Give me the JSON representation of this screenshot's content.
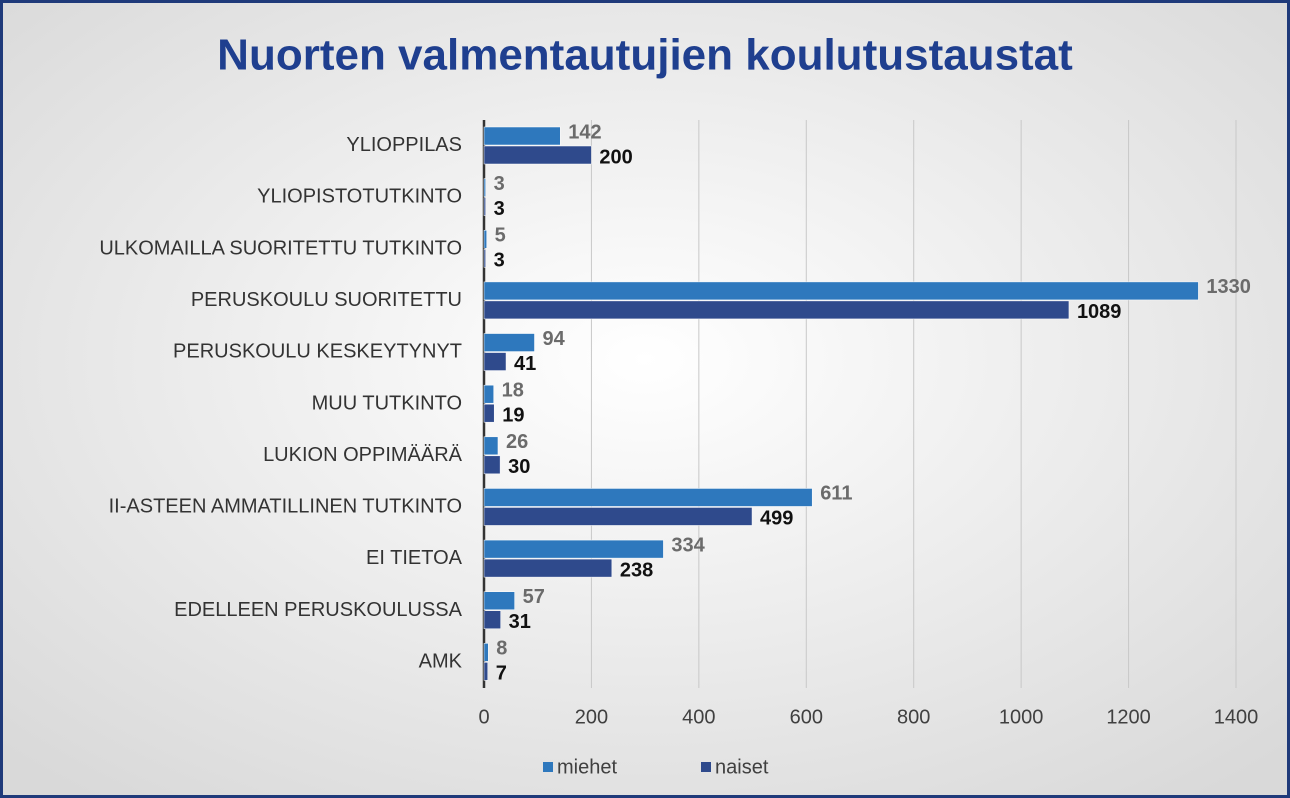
{
  "chart_data": {
    "type": "bar",
    "orientation": "horizontal",
    "title": "Nuorten valmentautujien koulutustaustat",
    "categories": [
      "YLIOPPILAS",
      "YLIOPISTOTUTKINTO",
      "ULKOMAILLA SUORITETTU TUTKINTO",
      "PERUSKOULU SUORITETTU",
      "PERUSKOULU KESKEYTYNYT",
      "MUU TUTKINTO",
      "LUKION OPPIMÄÄRÄ",
      "II-ASTEEN AMMATILLINEN TUTKINTO",
      "EI TIETOA",
      "EDELLEEN PERUSKOULUSSA",
      "AMK"
    ],
    "series": [
      {
        "name": "miehet",
        "color": "#2e78bd",
        "values": [
          142,
          3,
          5,
          1330,
          94,
          18,
          26,
          611,
          334,
          57,
          8
        ]
      },
      {
        "name": "naiset",
        "color": "#2f4a8c",
        "values": [
          200,
          3,
          3,
          1089,
          41,
          19,
          30,
          499,
          238,
          31,
          7
        ]
      }
    ],
    "xlim": [
      0,
      1400
    ],
    "xticks": [
      0,
      200,
      400,
      600,
      800,
      1000,
      1200,
      1400
    ],
    "grid": true,
    "legend": "bottom"
  }
}
